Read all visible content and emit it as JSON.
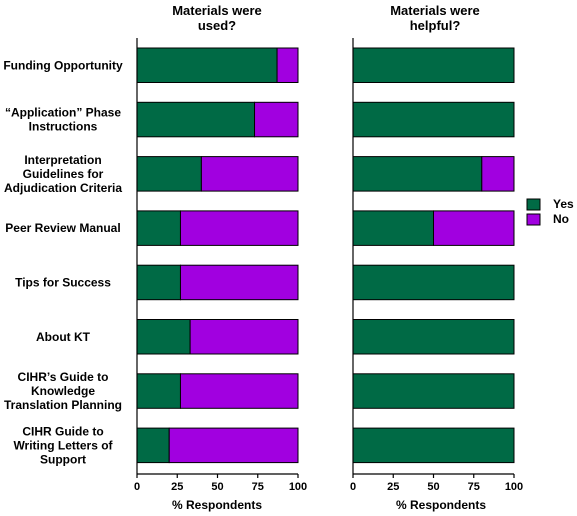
{
  "chart_data": [
    {
      "type": "bar",
      "orientation": "horizontal",
      "stacked": true,
      "title": "Materials were used?",
      "title_lines": [
        "Materials were",
        "used?"
      ],
      "xlabel": "% Respondents",
      "xlim": [
        0,
        100
      ],
      "xticks": [
        "0",
        "25",
        "50",
        "75",
        "100"
      ],
      "categories": [
        "Funding Opportunity",
        "“Application” Phase Instructions",
        "Interpretation Guidelines for Adjudication Criteria",
        "Peer Review Manual",
        "Tips for Success",
        "About KT",
        "CIHR’s Guide to Knowledge Translation Planning",
        "CIHR Guide to Writing Letters of Support"
      ],
      "series": [
        {
          "name": "Yes",
          "values": [
            87,
            73,
            40,
            27,
            27,
            33,
            27,
            20
          ]
        },
        {
          "name": "No",
          "values": [
            13,
            27,
            60,
            73,
            73,
            67,
            73,
            80
          ]
        }
      ]
    },
    {
      "type": "bar",
      "orientation": "horizontal",
      "stacked": true,
      "title": "Materials were helpful?",
      "title_lines": [
        "Materials were",
        "helpful?"
      ],
      "xlabel": "% Respondents",
      "xlim": [
        0,
        100
      ],
      "xticks": [
        "0",
        "25",
        "50",
        "75",
        "100"
      ],
      "categories": [
        "Funding Opportunity",
        "“Application” Phase Instructions",
        "Interpretation Guidelines for Adjudication Criteria",
        "Peer Review Manual",
        "Tips for Success",
        "About KT",
        "CIHR’s Guide to Knowledge Translation Planning",
        "CIHR Guide to Writing Letters of Support"
      ],
      "series": [
        {
          "name": "Yes",
          "values": [
            100,
            100,
            80,
            50,
            100,
            100,
            100,
            100
          ]
        },
        {
          "name": "No",
          "values": [
            0,
            0,
            20,
            50,
            0,
            0,
            0,
            0
          ]
        }
      ]
    }
  ],
  "category_label_lines": [
    [
      "Funding  Opportunity"
    ],
    [
      "“Application” Phase",
      "Instructions"
    ],
    [
      "Interpretation",
      "Guidelines for",
      "Adjudication Criteria"
    ],
    [
      "Peer Review Manual"
    ],
    [
      "Tips for Success"
    ],
    [
      "About KT"
    ],
    [
      "CIHR’s Guide to",
      "Knowledge",
      "Translation Planning"
    ],
    [
      "CIHR Guide to",
      "Writing Letters of",
      "Support"
    ]
  ],
  "legend": {
    "position": "right",
    "items": [
      {
        "name": "Yes",
        "color": "#006a45"
      },
      {
        "name": "No",
        "color": "#a100e0"
      }
    ]
  },
  "colors": {
    "yes": "#006a45",
    "no": "#a100e0",
    "edge": "#000000"
  }
}
